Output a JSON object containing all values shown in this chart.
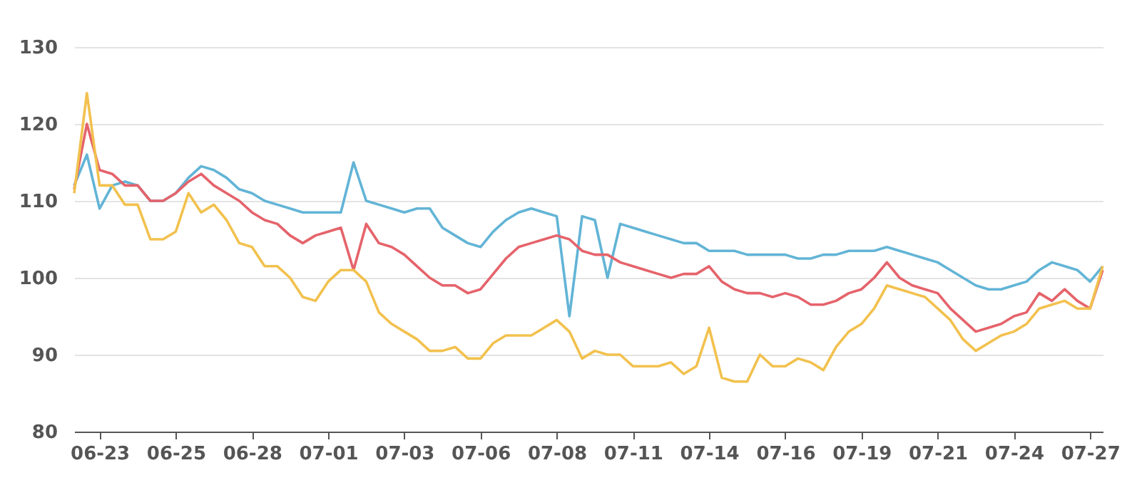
{
  "chart_data": {
    "type": "line",
    "categories": [
      null,
      null,
      "06-23",
      null,
      null,
      null,
      null,
      null,
      "06-25",
      null,
      null,
      null,
      null,
      null,
      "06-28",
      null,
      null,
      null,
      null,
      null,
      "07-01",
      null,
      null,
      null,
      null,
      null,
      "07-03",
      null,
      null,
      null,
      null,
      null,
      "07-06",
      null,
      null,
      null,
      null,
      null,
      "07-08",
      null,
      null,
      null,
      null,
      null,
      "07-11",
      null,
      null,
      null,
      null,
      null,
      "07-14",
      null,
      null,
      null,
      null,
      null,
      "07-16",
      null,
      null,
      null,
      null,
      null,
      "07-19",
      null,
      null,
      null,
      null,
      null,
      "07-21",
      null,
      null,
      null,
      null,
      null,
      "07-24",
      null,
      null,
      null,
      null,
      null,
      "07-27",
      null
    ],
    "series": [
      {
        "color": "#62b4d6",
        "values": [
          112,
          116,
          109,
          112,
          112.5,
          112,
          110,
          110,
          111,
          113,
          114.5,
          114,
          113,
          111.5,
          111,
          110,
          109.5,
          109,
          108.5,
          108.5,
          108.5,
          108.5,
          115,
          110,
          109.5,
          109,
          108.5,
          109,
          109,
          106.5,
          105.5,
          104.5,
          104,
          106,
          107.5,
          108.5,
          109,
          108.5,
          108,
          95,
          108,
          107.5,
          100,
          107,
          106.5,
          106,
          105.5,
          105,
          104.5,
          104.5,
          103.5,
          103.5,
          103.5,
          103,
          103,
          103,
          103,
          102.5,
          102.5,
          103,
          103,
          103.5,
          103.5,
          103.5,
          104,
          103.5,
          103,
          102.5,
          102,
          101,
          100,
          99,
          98.5,
          98.5,
          99,
          99.5,
          101,
          102,
          101.5,
          101,
          99.5,
          101.5
        ]
      },
      {
        "color": "#e5636b",
        "values": [
          111.5,
          120,
          114,
          113.5,
          112,
          112,
          110,
          110,
          111,
          112.5,
          113.5,
          112,
          111,
          110,
          108.5,
          107.5,
          107,
          105.5,
          104.5,
          105.5,
          106,
          106.5,
          101,
          107,
          104.5,
          104,
          103,
          101.5,
          100,
          99,
          99,
          98,
          98.5,
          100.5,
          102.5,
          104,
          104.5,
          105,
          105.5,
          105,
          103.5,
          103,
          103,
          102,
          101.5,
          101,
          100.5,
          100,
          100.5,
          100.5,
          101.5,
          99.5,
          98.5,
          98,
          98,
          97.5,
          98,
          97.5,
          96.5,
          96.5,
          97,
          98,
          98.5,
          100,
          102,
          100,
          99,
          98.5,
          98,
          96,
          94.5,
          93,
          93.5,
          94,
          95,
          95.5,
          98,
          97,
          98.5,
          97,
          96,
          101
        ]
      },
      {
        "color": "#f2c14e",
        "values": [
          111,
          124,
          112,
          112,
          109.5,
          109.5,
          105,
          105,
          106,
          111,
          108.5,
          109.5,
          107.5,
          104.5,
          104,
          101.5,
          101.5,
          100,
          97.5,
          97,
          99.5,
          101,
          101,
          99.5,
          95.5,
          94,
          93,
          92,
          90.5,
          90.5,
          91,
          89.5,
          89.5,
          91.5,
          92.5,
          92.5,
          92.5,
          93.5,
          94.5,
          93,
          89.5,
          90.5,
          90,
          90,
          88.5,
          88.5,
          88.5,
          89,
          87.5,
          88.5,
          93.5,
          87,
          86.5,
          86.5,
          90,
          88.5,
          88.5,
          89.5,
          89,
          88,
          91,
          93,
          94,
          96,
          99,
          98.5,
          98,
          97.5,
          96,
          94.5,
          92,
          90.5,
          91.5,
          92.5,
          93,
          94,
          96,
          96.5,
          97,
          96,
          96,
          101.5
        ]
      }
    ],
    "ylim": [
      80,
      130
    ],
    "yticks": [
      80,
      90,
      100,
      110,
      120,
      130
    ],
    "grid": "y",
    "marker": "none",
    "line_style": "solid"
  }
}
